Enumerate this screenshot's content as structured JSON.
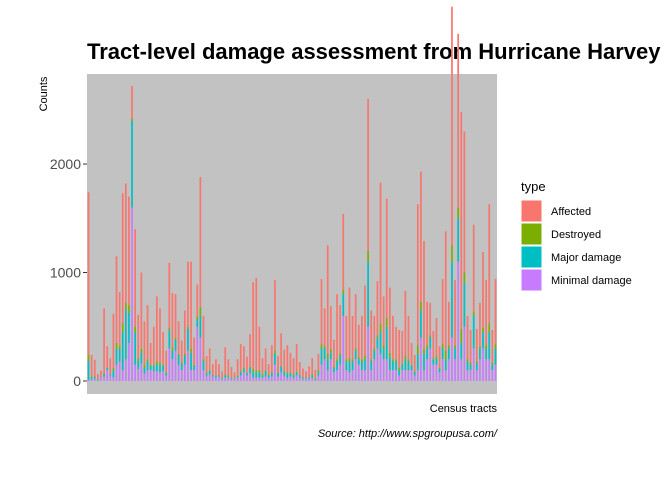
{
  "chart_data": {
    "type": "bar",
    "stacked": true,
    "title": "Tract-level damage assessment from Hurricane Harvey",
    "xlabel": "Census tracts",
    "ylabel": "Counts",
    "caption": "Source: http://www.spgroupusa.com/",
    "ylim": [
      -120,
      2830
    ],
    "yticks": [
      0,
      1000,
      2000
    ],
    "grid": false,
    "legend": {
      "title": "type",
      "position": "right",
      "entries": [
        "Affected",
        "Destroyed",
        "Major damage",
        "Minimal damage"
      ]
    },
    "colors": {
      "Affected": "#F8766D",
      "Destroyed": "#7CAE00",
      "Major damage": "#00BFC4",
      "Minimal damage": "#C77CFF",
      "panel": "#C2C2C2"
    },
    "series_order": [
      "Affected",
      "Destroyed",
      "Major damage",
      "Minimal damage"
    ],
    "note": "",
    "tracts": [
      [
        1500,
        60,
        170,
        10
      ],
      [
        200,
        5,
        20,
        15
      ],
      [
        150,
        10,
        15,
        20
      ],
      [
        50,
        0,
        10,
        5
      ],
      [
        60,
        0,
        5,
        30
      ],
      [
        600,
        10,
        20,
        40
      ],
      [
        200,
        0,
        20,
        100
      ],
      [
        150,
        0,
        10,
        50
      ],
      [
        500,
        20,
        70,
        30
      ],
      [
        800,
        50,
        150,
        150
      ],
      [
        500,
        30,
        110,
        180
      ],
      [
        1200,
        80,
        350,
        100
      ],
      [
        1100,
        70,
        450,
        200
      ],
      [
        1000,
        70,
        280,
        350
      ],
      [
        300,
        20,
        800,
        1600
      ],
      [
        900,
        50,
        300,
        150
      ],
      [
        400,
        20,
        80,
        110
      ],
      [
        700,
        40,
        100,
        160
      ],
      [
        400,
        30,
        50,
        70
      ],
      [
        500,
        20,
        80,
        100
      ],
      [
        200,
        10,
        40,
        100
      ],
      [
        350,
        10,
        50,
        90
      ],
      [
        600,
        30,
        60,
        90
      ],
      [
        500,
        20,
        70,
        80
      ],
      [
        300,
        10,
        50,
        90
      ],
      [
        200,
        10,
        20,
        50
      ],
      [
        600,
        30,
        160,
        300
      ],
      [
        500,
        30,
        80,
        200
      ],
      [
        400,
        20,
        100,
        280
      ],
      [
        300,
        10,
        90,
        150
      ],
      [
        200,
        10,
        60,
        100
      ],
      [
        400,
        20,
        80,
        150
      ],
      [
        600,
        20,
        200,
        280
      ],
      [
        800,
        40,
        160,
        100
      ],
      [
        250,
        10,
        40,
        100
      ],
      [
        300,
        30,
        60,
        500
      ],
      [
        1200,
        80,
        200,
        400
      ],
      [
        400,
        20,
        80,
        100
      ],
      [
        150,
        10,
        20,
        50
      ],
      [
        200,
        10,
        30,
        60
      ],
      [
        100,
        5,
        10,
        40
      ],
      [
        150,
        5,
        15,
        30
      ],
      [
        100,
        5,
        10,
        40
      ],
      [
        60,
        0,
        10,
        20
      ],
      [
        250,
        10,
        20,
        30
      ],
      [
        150,
        10,
        10,
        30
      ],
      [
        100,
        0,
        10,
        20
      ],
      [
        60,
        0,
        5,
        15
      ],
      [
        150,
        10,
        10,
        30
      ],
      [
        250,
        10,
        30,
        50
      ],
      [
        200,
        10,
        30,
        80
      ],
      [
        150,
        5,
        20,
        50
      ],
      [
        300,
        10,
        50,
        70
      ],
      [
        800,
        30,
        50,
        30
      ],
      [
        850,
        20,
        50,
        30
      ],
      [
        400,
        20,
        50,
        30
      ],
      [
        150,
        10,
        20,
        30
      ],
      [
        200,
        10,
        50,
        40
      ],
      [
        100,
        5,
        20,
        30
      ],
      [
        250,
        10,
        30,
        40
      ],
      [
        650,
        30,
        100,
        150
      ],
      [
        150,
        10,
        30,
        40
      ],
      [
        300,
        10,
        50,
        80
      ],
      [
        200,
        10,
        30,
        50
      ],
      [
        250,
        10,
        40,
        30
      ],
      [
        180,
        10,
        30,
        40
      ],
      [
        150,
        10,
        20,
        30
      ],
      [
        250,
        10,
        30,
        50
      ],
      [
        120,
        5,
        20,
        30
      ],
      [
        80,
        5,
        10,
        20
      ],
      [
        60,
        0,
        10,
        20
      ],
      [
        100,
        5,
        10,
        20
      ],
      [
        150,
        10,
        20,
        30
      ],
      [
        80,
        5,
        10,
        10
      ],
      [
        150,
        20,
        30,
        50
      ],
      [
        600,
        40,
        150,
        150
      ],
      [
        350,
        20,
        100,
        200
      ],
      [
        1000,
        50,
        100,
        100
      ],
      [
        400,
        30,
        60,
        200
      ],
      [
        250,
        10,
        40,
        80
      ],
      [
        600,
        20,
        80,
        100
      ],
      [
        450,
        20,
        80,
        150
      ],
      [
        700,
        40,
        200,
        600
      ],
      [
        400,
        20,
        80,
        100
      ],
      [
        650,
        30,
        100,
        80
      ],
      [
        400,
        20,
        80,
        100
      ],
      [
        500,
        20,
        80,
        200
      ],
      [
        300,
        20,
        50,
        150
      ],
      [
        400,
        20,
        80,
        100
      ],
      [
        650,
        30,
        100,
        100
      ],
      [
        1400,
        100,
        600,
        500
      ],
      [
        450,
        20,
        80,
        100
      ],
      [
        300,
        20,
        80,
        200
      ],
      [
        500,
        20,
        100,
        300
      ],
      [
        1300,
        80,
        200,
        250
      ],
      [
        450,
        30,
        100,
        200
      ],
      [
        1100,
        80,
        300,
        200
      ],
      [
        600,
        40,
        120,
        100
      ],
      [
        400,
        20,
        80,
        100
      ],
      [
        300,
        20,
        80,
        100
      ],
      [
        350,
        20,
        50,
        50
      ],
      [
        300,
        10,
        50,
        100
      ],
      [
        600,
        30,
        100,
        100
      ],
      [
        400,
        20,
        80,
        100
      ],
      [
        200,
        10,
        40,
        100
      ],
      [
        150,
        10,
        30,
        50
      ],
      [
        1300,
        80,
        150,
        100
      ],
      [
        1200,
        80,
        250,
        400
      ],
      [
        1000,
        40,
        150,
        100
      ],
      [
        400,
        30,
        100,
        200
      ],
      [
        300,
        20,
        100,
        300
      ],
      [
        250,
        10,
        50,
        150
      ],
      [
        350,
        20,
        60,
        150
      ],
      [
        200,
        10,
        30,
        80
      ],
      [
        600,
        40,
        100,
        200
      ],
      [
        1100,
        80,
        100,
        100
      ],
      [
        400,
        30,
        100,
        200
      ],
      [
        2200,
        150,
        700,
        400
      ],
      [
        600,
        30,
        100,
        200
      ],
      [
        1600,
        100,
        400,
        1100
      ],
      [
        2000,
        130,
        150,
        200
      ],
      [
        1300,
        100,
        400,
        500
      ],
      [
        400,
        20,
        80,
        100
      ],
      [
        300,
        20,
        50,
        100
      ],
      [
        800,
        40,
        300,
        300
      ],
      [
        300,
        20,
        60,
        100
      ],
      [
        400,
        20,
        100,
        200
      ],
      [
        700,
        40,
        150,
        300
      ],
      [
        600,
        30,
        100,
        200
      ],
      [
        1100,
        80,
        250,
        200
      ],
      [
        300,
        20,
        50,
        100
      ],
      [
        600,
        40,
        150,
        150
      ]
    ]
  }
}
